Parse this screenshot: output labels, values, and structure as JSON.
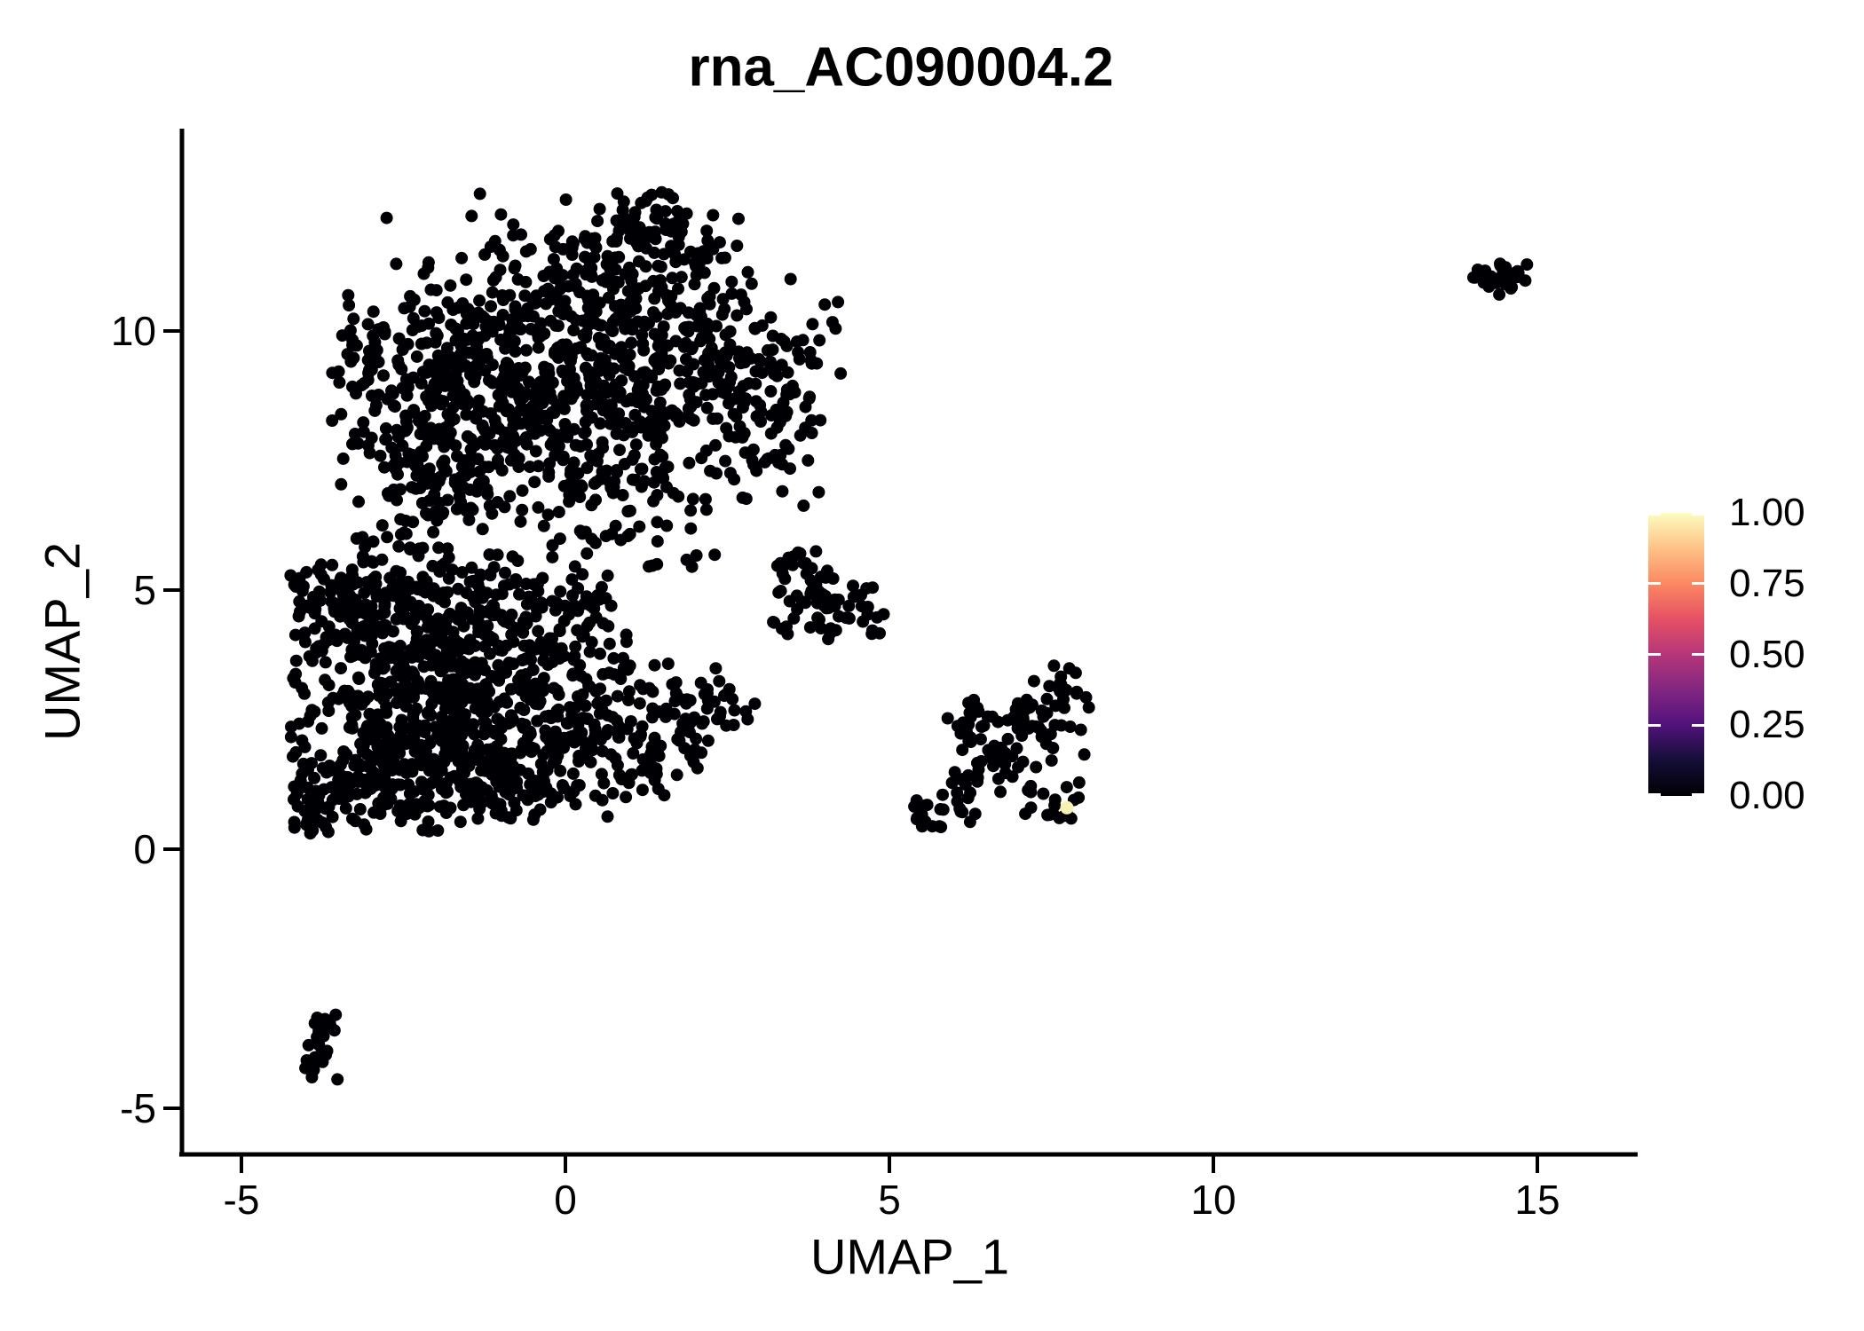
{
  "title": "rna_AC090004.2",
  "chart_data": {
    "type": "scatter",
    "title": "rna_AC090004.2",
    "xlabel": "UMAP_1",
    "ylabel": "UMAP_2",
    "xlim": [
      -5.9,
      16.4
    ],
    "ylim": [
      -5.9,
      13.9
    ],
    "x_ticks": [
      "-5",
      "0",
      "5",
      "10",
      "15"
    ],
    "x_tick_values": [
      -5,
      0,
      5,
      10,
      15
    ],
    "y_ticks": [
      "-5",
      "0",
      "5",
      "10"
    ],
    "y_tick_values": [
      -5,
      0,
      5,
      10
    ],
    "grid": false,
    "legend_position": "right",
    "point_color": "#000004",
    "point_radius_px": 7,
    "n_points_approx": 2900,
    "colorbar": {
      "labels": [
        "1.00",
        "0.75",
        "0.50",
        "0.25",
        "0.00"
      ],
      "tick_values": [
        1.0,
        0.75,
        0.5,
        0.25,
        0.0
      ],
      "stops": [
        {
          "v": 0.0,
          "color": "#000004"
        },
        {
          "v": 0.125,
          "color": "#140E36"
        },
        {
          "v": 0.25,
          "color": "#51127C"
        },
        {
          "v": 0.375,
          "color": "#822681"
        },
        {
          "v": 0.5,
          "color": "#B63679"
        },
        {
          "v": 0.625,
          "color": "#E65164"
        },
        {
          "v": 0.75,
          "color": "#FB8861"
        },
        {
          "v": 0.875,
          "color": "#FEC287"
        },
        {
          "v": 1.0,
          "color": "#FCFDBF"
        }
      ]
    },
    "highlight_point": {
      "x": 7.74,
      "y": 0.8,
      "value": 1.0,
      "color": "#F6F2B3"
    },
    "clusters": [
      {
        "name": "upper-body",
        "bounds": {
          "x": [
            -3.65,
            4.35
          ],
          "y": [
            5.45,
            12.75
          ]
        },
        "blobs": [
          {
            "cx": -1.5,
            "cy": 9.6,
            "sx": 1.05,
            "sy": 0.9,
            "n": 185
          },
          {
            "cx": 0.2,
            "cy": 9.8,
            "sx": 1.15,
            "sy": 1.0,
            "n": 215
          },
          {
            "cx": 1.6,
            "cy": 9.2,
            "sx": 1.0,
            "sy": 1.0,
            "n": 185
          },
          {
            "cx": 2.9,
            "cy": 8.9,
            "sx": 0.7,
            "sy": 0.85,
            "n": 120
          },
          {
            "cx": 0.9,
            "cy": 11.2,
            "sx": 0.95,
            "sy": 0.6,
            "n": 110
          },
          {
            "cx": 1.15,
            "cy": 12.15,
            "sx": 0.45,
            "sy": 0.33,
            "n": 45
          },
          {
            "cx": -0.6,
            "cy": 8.2,
            "sx": 1.0,
            "sy": 0.8,
            "n": 150
          },
          {
            "cx": -2.6,
            "cy": 8.7,
            "sx": 0.6,
            "sy": 0.95,
            "n": 90
          },
          {
            "cx": 0.6,
            "cy": 7.0,
            "sx": 0.85,
            "sy": 0.55,
            "n": 80
          },
          {
            "cx": -1.8,
            "cy": 7.1,
            "sx": 0.6,
            "sy": 0.55,
            "n": 60
          },
          {
            "cx": -2.3,
            "cy": 6.1,
            "sx": 0.4,
            "sy": 0.5,
            "n": 28
          },
          {
            "cx": 0.9,
            "cy": 5.9,
            "sx": 0.8,
            "sy": 0.45,
            "n": 22
          }
        ]
      },
      {
        "name": "lower-left-body",
        "bounds": {
          "x": [
            -4.25,
            2.65
          ],
          "y": [
            0.25,
            5.85
          ]
        },
        "blobs": [
          {
            "cx": -2.8,
            "cy": 3.6,
            "sx": 0.8,
            "sy": 0.9,
            "n": 170
          },
          {
            "cx": -1.6,
            "cy": 3.0,
            "sx": 1.0,
            "sy": 0.95,
            "n": 215
          },
          {
            "cx": -0.3,
            "cy": 2.6,
            "sx": 0.95,
            "sy": 0.8,
            "n": 175
          },
          {
            "cx": -3.2,
            "cy": 1.6,
            "sx": 0.7,
            "sy": 0.7,
            "n": 120
          },
          {
            "cx": -2.0,
            "cy": 1.1,
            "sx": 0.8,
            "sy": 0.5,
            "n": 110
          },
          {
            "cx": -0.9,
            "cy": 1.5,
            "sx": 0.7,
            "sy": 0.55,
            "n": 80
          },
          {
            "cx": -3.5,
            "cy": 4.6,
            "sx": 0.5,
            "sy": 0.6,
            "n": 70
          },
          {
            "cx": -2.2,
            "cy": 4.8,
            "sx": 0.8,
            "sy": 0.5,
            "n": 90
          },
          {
            "cx": 0.9,
            "cy": 2.0,
            "sx": 0.7,
            "sy": 0.6,
            "n": 70
          },
          {
            "cx": 1.8,
            "cy": 2.7,
            "sx": 0.5,
            "sy": 0.45,
            "n": 38
          },
          {
            "cx": -3.9,
            "cy": 0.85,
            "sx": 0.28,
            "sy": 0.4,
            "n": 28
          },
          {
            "cx": -1.0,
            "cy": 4.6,
            "sx": 0.6,
            "sy": 0.5,
            "n": 60
          },
          {
            "cx": 0.2,
            "cy": 4.4,
            "sx": 0.5,
            "sy": 0.45,
            "n": 35
          }
        ]
      },
      {
        "name": "mid-small",
        "bounds": {
          "x": [
            3.15,
            4.95
          ],
          "y": [
            4.0,
            5.95
          ]
        },
        "blobs": [
          {
            "cx": 3.7,
            "cy": 5.3,
            "sx": 0.33,
            "sy": 0.42,
            "n": 30
          },
          {
            "cx": 4.2,
            "cy": 4.6,
            "sx": 0.38,
            "sy": 0.38,
            "n": 34
          },
          {
            "cx": 3.4,
            "cy": 4.4,
            "sx": 0.28,
            "sy": 0.28,
            "n": 10
          },
          {
            "cx": 4.85,
            "cy": 4.45,
            "sx": 0.08,
            "sy": 0.08,
            "n": 2
          }
        ]
      },
      {
        "name": "mid-right",
        "bounds": {
          "x": [
            5.35,
            8.15
          ],
          "y": [
            0.35,
            3.7
          ]
        },
        "blobs": [
          {
            "cx": 5.7,
            "cy": 0.75,
            "sx": 0.33,
            "sy": 0.22,
            "n": 22
          },
          {
            "cx": 6.3,
            "cy": 1.45,
            "sx": 0.33,
            "sy": 0.33,
            "n": 18
          },
          {
            "cx": 7.0,
            "cy": 2.2,
            "sx": 0.5,
            "sy": 0.4,
            "n": 46
          },
          {
            "cx": 6.35,
            "cy": 2.4,
            "sx": 0.3,
            "sy": 0.25,
            "n": 15
          },
          {
            "cx": 7.7,
            "cy": 3.0,
            "sx": 0.24,
            "sy": 0.42,
            "n": 24
          },
          {
            "cx": 7.6,
            "cy": 0.8,
            "sx": 0.3,
            "sy": 0.18,
            "n": 14
          },
          {
            "cx": 6.9,
            "cy": 1.2,
            "sx": 0.5,
            "sy": 0.38,
            "n": 12
          }
        ]
      },
      {
        "name": "far-right",
        "bounds": {
          "x": [
            13.85,
            15.0
          ],
          "y": [
            10.7,
            11.4
          ]
        },
        "blobs": [
          {
            "cx": 14.45,
            "cy": 11.05,
            "sx": 0.3,
            "sy": 0.17,
            "n": 30
          }
        ]
      },
      {
        "name": "bottom-left-small",
        "bounds": {
          "x": [
            -4.05,
            -3.4
          ],
          "y": [
            -4.6,
            -3.0
          ]
        },
        "blobs": [
          {
            "cx": -3.85,
            "cy": -4.15,
            "sx": 0.14,
            "sy": 0.28,
            "n": 14
          },
          {
            "cx": -3.7,
            "cy": -3.45,
            "sx": 0.13,
            "sy": 0.24,
            "n": 12
          }
        ]
      },
      {
        "name": "strays",
        "bounds": {
          "x": [
            2.3,
            3.1
          ],
          "y": [
            2.3,
            3.0
          ]
        },
        "blobs": [
          {
            "cx": 2.6,
            "cy": 2.6,
            "sx": 0.25,
            "sy": 0.2,
            "n": 7
          }
        ]
      }
    ]
  }
}
